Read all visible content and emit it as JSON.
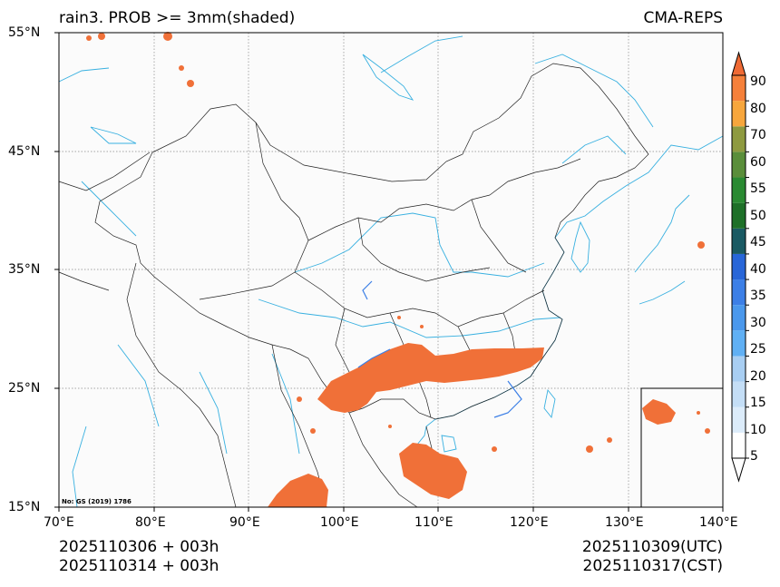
{
  "header": {
    "title_left": "rain3. PROB >= 3mm(shaded)",
    "title_right": "CMA-REPS"
  },
  "axes": {
    "lat_labels": [
      "55°N",
      "45°N",
      "35°N",
      "25°N",
      "15°N"
    ],
    "lon_labels": [
      "70°E",
      "80°E",
      "90°E",
      "100°E",
      "110°E",
      "120°E",
      "130°E",
      "140°E"
    ]
  },
  "map": {
    "extent": {
      "lon_min": 70,
      "lon_max": 140,
      "lat_min": 15,
      "lat_max": 55
    },
    "credit": "No: GS (2019) 1786",
    "precip_color": "#f07038",
    "boundary_color": "#222222",
    "river_color": "#38b0e0"
  },
  "colorbar": {
    "levels": [
      "5",
      "10",
      "15",
      "20",
      "25",
      "30",
      "35",
      "40",
      "45",
      "50",
      "55",
      "60",
      "70",
      "80",
      "90"
    ],
    "colors": [
      "#dcecfa",
      "#c4def6",
      "#a8cef2",
      "#60b0f4",
      "#4a98ec",
      "#3c7fe6",
      "#2866d8",
      "#1a5a63",
      "#1e7028",
      "#2a8a32",
      "#5a8e3a",
      "#8e9a40",
      "#f7a63c",
      "#f5803a",
      "#ef6a34"
    ]
  },
  "footer": {
    "init_line1": "2025110306  +  003h",
    "init_line2": "2025110314  +  003h",
    "valid_utc": "2025110309(UTC)",
    "valid_cst": "2025110317(CST)"
  }
}
